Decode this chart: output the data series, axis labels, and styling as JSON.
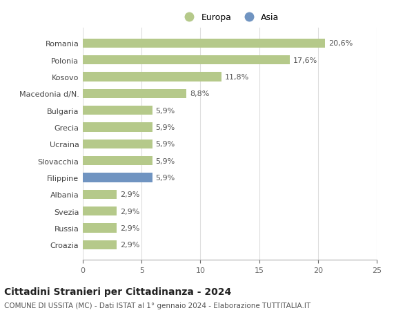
{
  "categories": [
    "Romania",
    "Polonia",
    "Kosovo",
    "Macedonia d/N.",
    "Bulgaria",
    "Grecia",
    "Ucraina",
    "Slovacchia",
    "Filippine",
    "Albania",
    "Svezia",
    "Russia",
    "Croazia"
  ],
  "values": [
    20.6,
    17.6,
    11.8,
    8.8,
    5.9,
    5.9,
    5.9,
    5.9,
    5.9,
    2.9,
    2.9,
    2.9,
    2.9
  ],
  "labels": [
    "20,6%",
    "17,6%",
    "11,8%",
    "8,8%",
    "5,9%",
    "5,9%",
    "5,9%",
    "5,9%",
    "5,9%",
    "2,9%",
    "2,9%",
    "2,9%",
    "2,9%"
  ],
  "continents": [
    "Europa",
    "Europa",
    "Europa",
    "Europa",
    "Europa",
    "Europa",
    "Europa",
    "Europa",
    "Asia",
    "Europa",
    "Europa",
    "Europa",
    "Europa"
  ],
  "europa_color": "#b5c98a",
  "asia_color": "#7094c1",
  "bar_height": 0.55,
  "xlim": [
    0,
    25
  ],
  "xticks": [
    0,
    5,
    10,
    15,
    20,
    25
  ],
  "title": "Cittadini Stranieri per Cittadinanza - 2024",
  "subtitle": "COMUNE DI USSITA (MC) - Dati ISTAT al 1° gennaio 2024 - Elaborazione TUTTITALIA.IT",
  "title_fontsize": 10,
  "subtitle_fontsize": 7.5,
  "label_fontsize": 8,
  "tick_fontsize": 8,
  "legend_fontsize": 9,
  "background_color": "#ffffff",
  "grid_color": "#dddddd"
}
